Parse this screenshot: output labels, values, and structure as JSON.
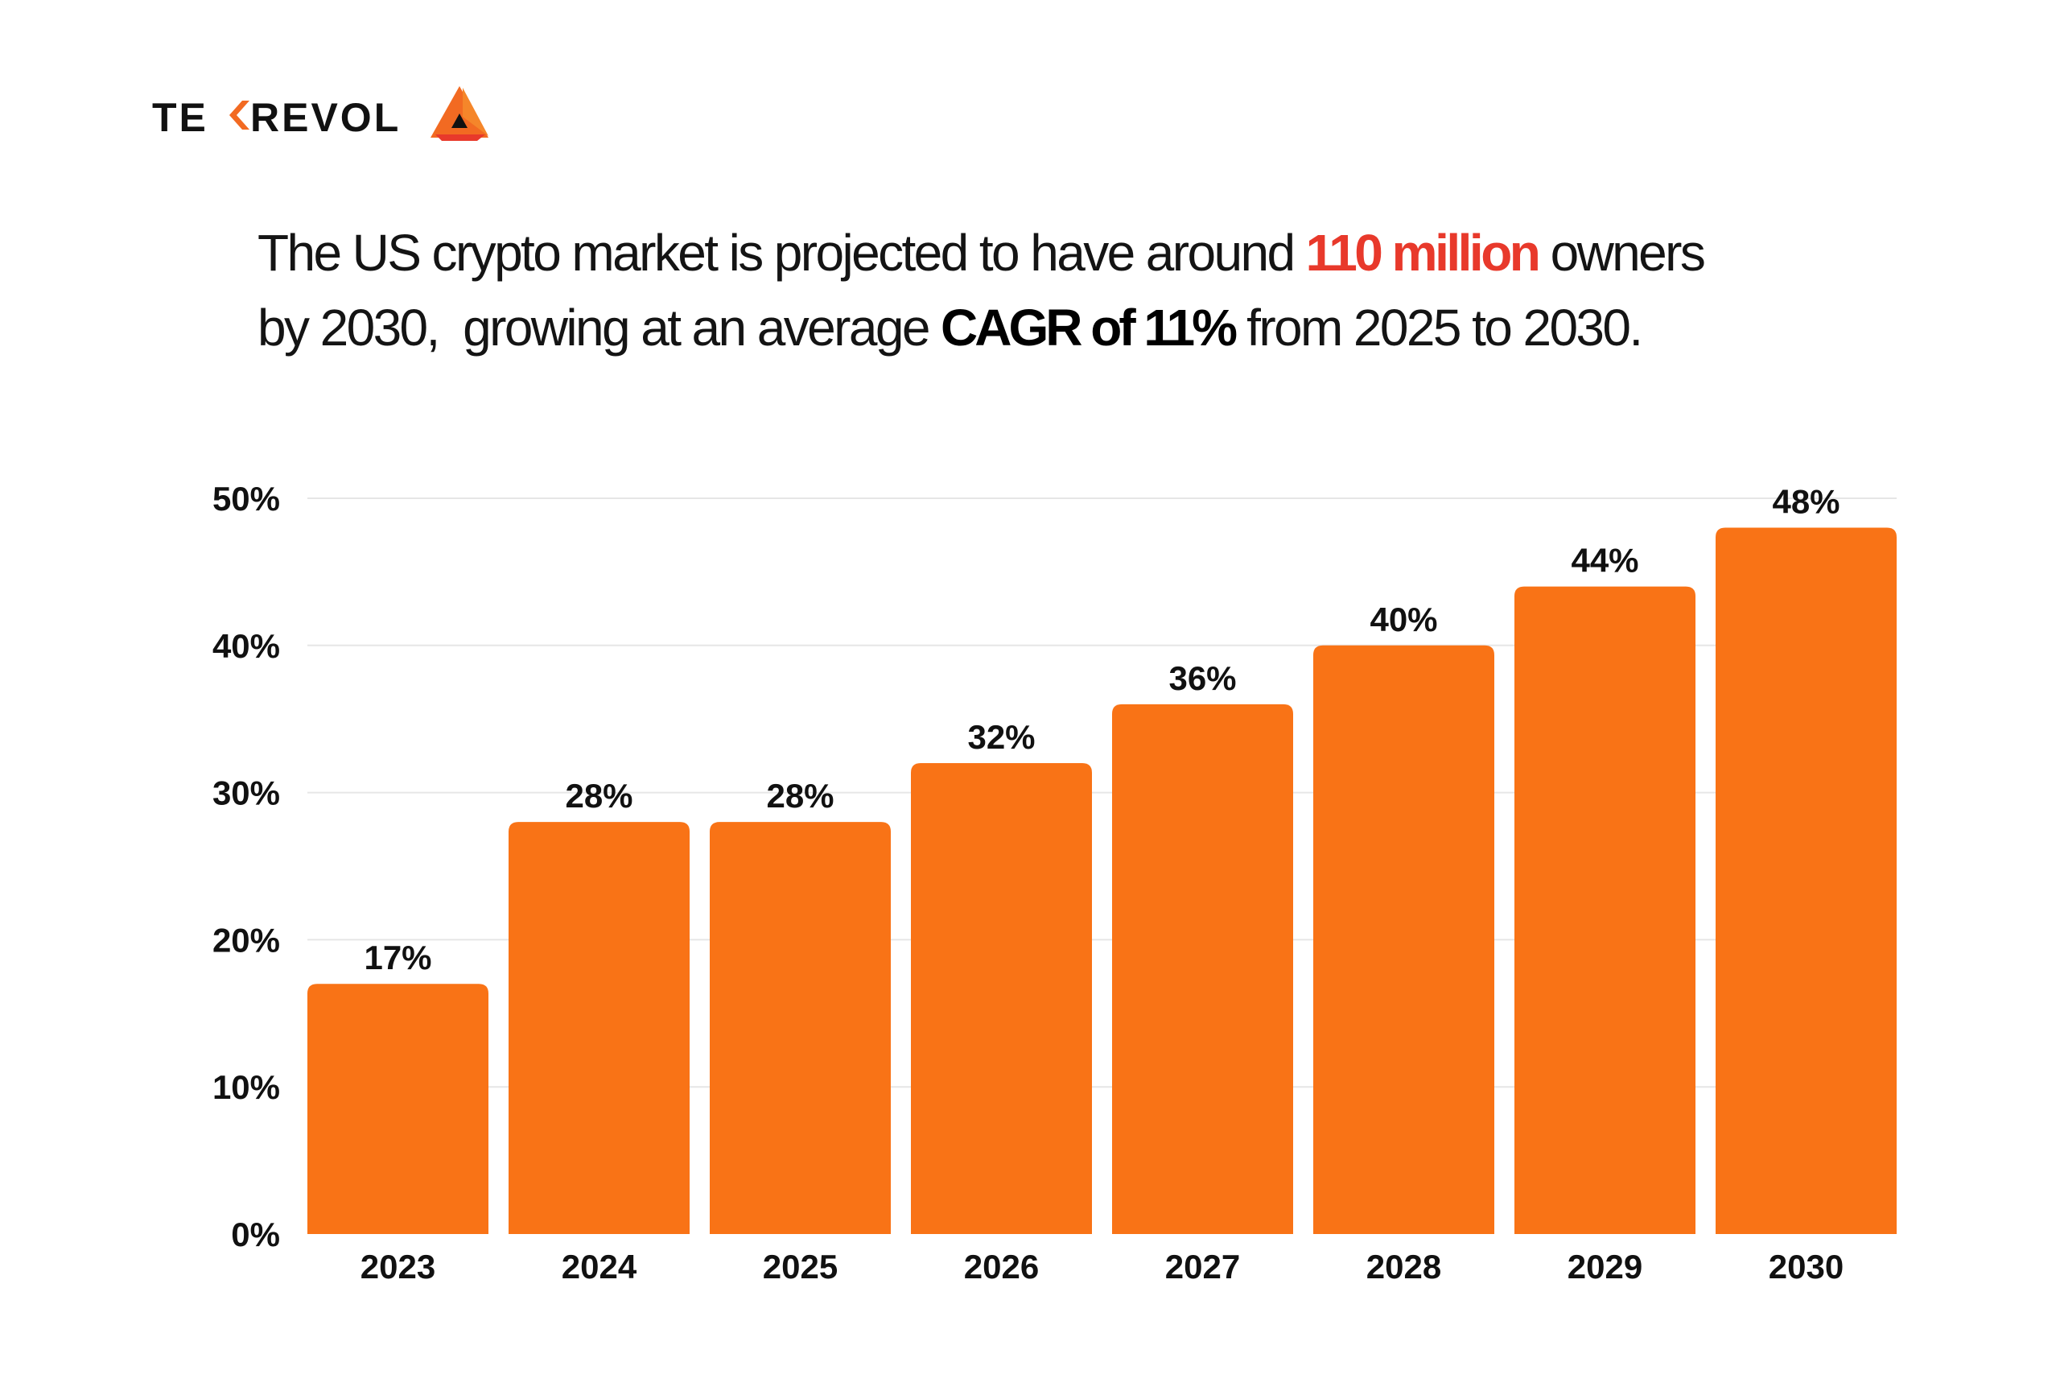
{
  "logo": {
    "text": "TEKREVOL"
  },
  "headline": {
    "line1_pre": "The US crypto market is projected to have around ",
    "line1_highlight": "110 million",
    "line1_post": " owners",
    "line2_pre": "by 2030,  growing at an average ",
    "line2_bold": "CAGR of 11%",
    "line2_post": " from 2025 to 2030."
  },
  "colors": {
    "bar": "#f97316",
    "highlight": "#e8392b",
    "grid": "#e6e6e6"
  },
  "chart_data": {
    "type": "bar",
    "title": "",
    "xlabel": "",
    "ylabel": "",
    "categories": [
      "2023",
      "2024",
      "2025",
      "2026",
      "2027",
      "2028",
      "2029",
      "2030"
    ],
    "values": [
      17,
      28,
      28,
      32,
      36,
      40,
      44,
      48
    ],
    "value_labels": [
      "17%",
      "28%",
      "28%",
      "32%",
      "36%",
      "40%",
      "44%",
      "48%"
    ],
    "ylim": [
      0,
      50
    ],
    "yticks": [
      0,
      10,
      20,
      30,
      40,
      50
    ],
    "ytick_labels": [
      "0%",
      "10%",
      "20%",
      "30%",
      "40%",
      "50%"
    ],
    "grid": true,
    "legend": "none"
  }
}
